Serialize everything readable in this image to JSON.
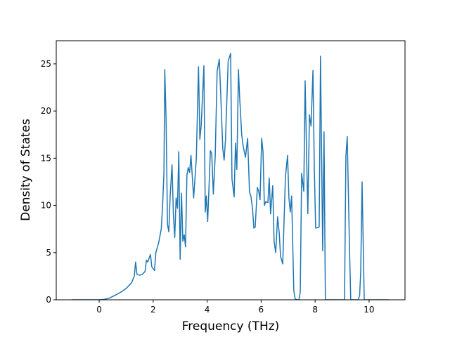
{
  "chart_data": {
    "type": "line",
    "x_label": "Frequency (THz)",
    "y_label": "Density of States",
    "xlim": [
      -1.59,
      11.33
    ],
    "ylim": [
      0,
      27.45
    ],
    "xticks": [
      0,
      2,
      4,
      6,
      8,
      10
    ],
    "yticks": [
      0,
      5,
      10,
      15,
      20,
      25
    ],
    "series": [
      {
        "color": "#1f77b4",
        "x": [
          -1.02,
          -0.5,
          0,
          0.2,
          0.4,
          0.6,
          0.8,
          1.0,
          1.2,
          1.3,
          1.35,
          1.4,
          1.5,
          1.6,
          1.7,
          1.75,
          1.8,
          1.9,
          1.95,
          2.05,
          2.1,
          2.2,
          2.3,
          2.35,
          2.4,
          2.43,
          2.48,
          2.53,
          2.58,
          2.63,
          2.7,
          2.75,
          2.8,
          2.85,
          2.9,
          2.95,
          3.0,
          3.05,
          3.1,
          3.15,
          3.2,
          3.25,
          3.3,
          3.35,
          3.4,
          3.5,
          3.6,
          3.68,
          3.73,
          3.78,
          3.88,
          3.93,
          3.97,
          4.02,
          4.07,
          4.12,
          4.17,
          4.23,
          4.3,
          4.37,
          4.45,
          4.5,
          4.58,
          4.63,
          4.68,
          4.78,
          4.87,
          4.92,
          5.0,
          5.05,
          5.1,
          5.16,
          5.2,
          5.28,
          5.34,
          5.42,
          5.5,
          5.57,
          5.62,
          5.68,
          5.73,
          5.78,
          5.86,
          5.91,
          5.96,
          6.02,
          6.07,
          6.12,
          6.17,
          6.25,
          6.3,
          6.35,
          6.43,
          6.48,
          6.54,
          6.61,
          6.67,
          6.72,
          6.8,
          6.9,
          6.98,
          7.03,
          7.08,
          7.13,
          7.21,
          7.26,
          7.34,
          7.4,
          7.45,
          7.5,
          7.58,
          7.63,
          7.68,
          7.73,
          7.79,
          7.85,
          7.92,
          7.97,
          8.02,
          8.15,
          8.2,
          8.28,
          8.33,
          8.38,
          9.09,
          9.14,
          9.19,
          9.27,
          9.32,
          9.6,
          9.65,
          9.69,
          9.74,
          9.82,
          10.73
        ],
        "values": [
          0,
          0,
          0,
          0.05,
          0.2,
          0.5,
          0.8,
          1.2,
          1.8,
          2.5,
          4.0,
          2.7,
          2.6,
          2.7,
          3.0,
          4.2,
          4.0,
          4.8,
          3.5,
          3.1,
          5.0,
          6.0,
          7.5,
          10,
          13.5,
          24.4,
          19,
          8,
          7.2,
          11,
          14.3,
          9,
          6.6,
          10.8,
          9.7,
          15.7,
          4.3,
          11.3,
          6.2,
          6.9,
          5.6,
          13.2,
          14,
          13.5,
          15.3,
          10.8,
          15,
          24.7,
          17,
          18.5,
          24.8,
          9.3,
          11,
          8.3,
          12,
          15.8,
          15.5,
          11.2,
          15.3,
          24.2,
          25.5,
          22,
          16,
          14.8,
          17,
          25.3,
          26.1,
          12.8,
          10.9,
          16.6,
          13.8,
          24.4,
          21.7,
          17.5,
          16.2,
          15.1,
          17.1,
          11.4,
          11,
          9.7,
          7.6,
          7.7,
          11.9,
          11.5,
          10.6,
          17.1,
          15.7,
          10,
          10.4,
          10.3,
          12.9,
          9.1,
          12.1,
          6.2,
          5.0,
          8.8,
          7.1,
          4.6,
          3.8,
          13,
          15.3,
          10.8,
          9.3,
          11,
          1.0,
          0.1,
          0,
          0,
          0.8,
          13.4,
          11.5,
          23.2,
          16,
          9.1,
          19.6,
          18.4,
          24.3,
          14,
          7.6,
          7.7,
          25.8,
          5.2,
          17.8,
          0,
          0,
          15.2,
          17.3,
          6,
          0,
          0,
          0.5,
          3,
          12.5,
          0,
          0
        ]
      }
    ]
  }
}
